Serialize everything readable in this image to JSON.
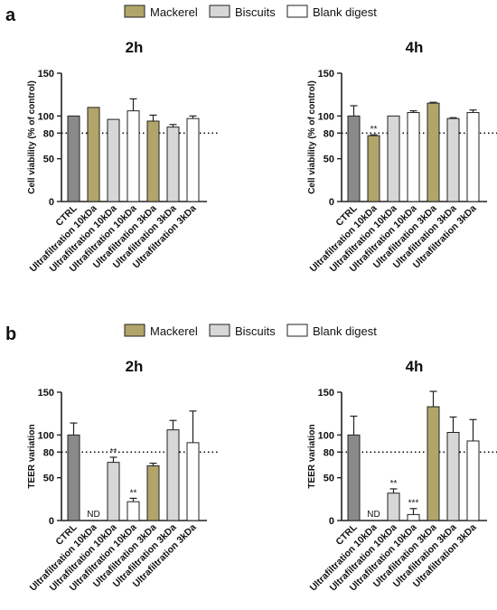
{
  "colors": {
    "CTRL": "#8a8a8a",
    "Mackerel": "#b2a56a",
    "Biscuits": "#d7d7d7",
    "Blank digest": "#ffffff",
    "axis": "#222222"
  },
  "panels": [
    {
      "label": "a",
      "legend": [
        "Mackerel",
        "Biscuits",
        "Blank digest"
      ],
      "ylabel": "Cell viability (% of control)",
      "yticks": [
        0,
        50,
        80,
        100,
        150
      ],
      "ylim": [
        0,
        150
      ],
      "reference_line": 80,
      "charts": [
        {
          "type": "bar",
          "title": "2h",
          "categories": [
            "CTRL",
            "Ultrafiltration 10kDa",
            "Ultrafiltration 10kDa",
            "Ultrafiltration 10kDa",
            "Ultrafiltration 3kDa",
            "Ultrafiltration 3kDa",
            "Ultrafiltration 3kDa"
          ],
          "groups": [
            "CTRL",
            "Mackerel",
            "Biscuits",
            "Blank digest",
            "Mackerel",
            "Biscuits",
            "Blank digest"
          ],
          "values": [
            100,
            110,
            96,
            106,
            94,
            87,
            97
          ],
          "errors": [
            0,
            0,
            0,
            14,
            7,
            3,
            3
          ],
          "annotations": [
            "",
            "",
            "",
            "",
            "",
            "",
            ""
          ]
        },
        {
          "type": "bar",
          "title": "4h",
          "categories": [
            "CTRL",
            "Ultrafiltration 10kDa",
            "Ultrafiltration 10kDa",
            "Ultrafiltration 10kDa",
            "Ultrafiltration 3kDa",
            "Ultrafiltration 3kDa",
            "Ultrafiltration 3kDa"
          ],
          "groups": [
            "CTRL",
            "Mackerel",
            "Biscuits",
            "Blank digest",
            "Mackerel",
            "Biscuits",
            "Blank digest"
          ],
          "values": [
            100,
            77,
            100,
            104,
            115,
            97,
            104
          ],
          "errors": [
            12,
            1,
            0,
            2,
            1,
            1,
            3
          ],
          "annotations": [
            "",
            "**",
            "",
            "",
            "",
            "",
            ""
          ]
        }
      ]
    },
    {
      "label": "b",
      "legend": [
        "Mackerel",
        "Biscuits",
        "Blank digest"
      ],
      "ylabel": "TEER variation",
      "yticks": [
        0,
        50,
        80,
        100,
        150
      ],
      "ylim": [
        0,
        150
      ],
      "reference_line": 80,
      "charts": [
        {
          "type": "bar",
          "title": "2h",
          "categories": [
            "CTRL",
            "Ultrafiltration 10kDa",
            "Ultrafiltration 10kDa",
            "Ultrafiltration 10kDa",
            "Ultrafiltration 3kDa",
            "Ultrafiltration 3kDa",
            "Ultrafiltration 3kDa"
          ],
          "groups": [
            "CTRL",
            "Mackerel",
            "Biscuits",
            "Blank digest",
            "Mackerel",
            "Biscuits",
            "Blank digest"
          ],
          "values": [
            100,
            null,
            68,
            22,
            64,
            106,
            91
          ],
          "errors": [
            14,
            0,
            6,
            4,
            3,
            11,
            37
          ],
          "annotations": [
            "",
            "ND",
            "**",
            "**",
            "",
            "",
            ""
          ]
        },
        {
          "type": "bar",
          "title": "4h",
          "categories": [
            "CTRL",
            "Ultrafiltration 10kDa",
            "Ultrafiltration 10kDa",
            "Ultrafiltration 10kDa",
            "Ultrafiltration 3kDa",
            "Ultrafiltration 3kDa",
            "Ultrafiltration 3kDa"
          ],
          "groups": [
            "CTRL",
            "Mackerel",
            "Biscuits",
            "Blank digest",
            "Mackerel",
            "Biscuits",
            "Blank digest"
          ],
          "values": [
            100,
            null,
            32,
            7,
            133,
            103,
            93
          ],
          "errors": [
            22,
            0,
            5,
            7,
            18,
            18,
            25
          ],
          "annotations": [
            "",
            "ND",
            "**",
            "***",
            "",
            "",
            ""
          ]
        }
      ]
    }
  ]
}
